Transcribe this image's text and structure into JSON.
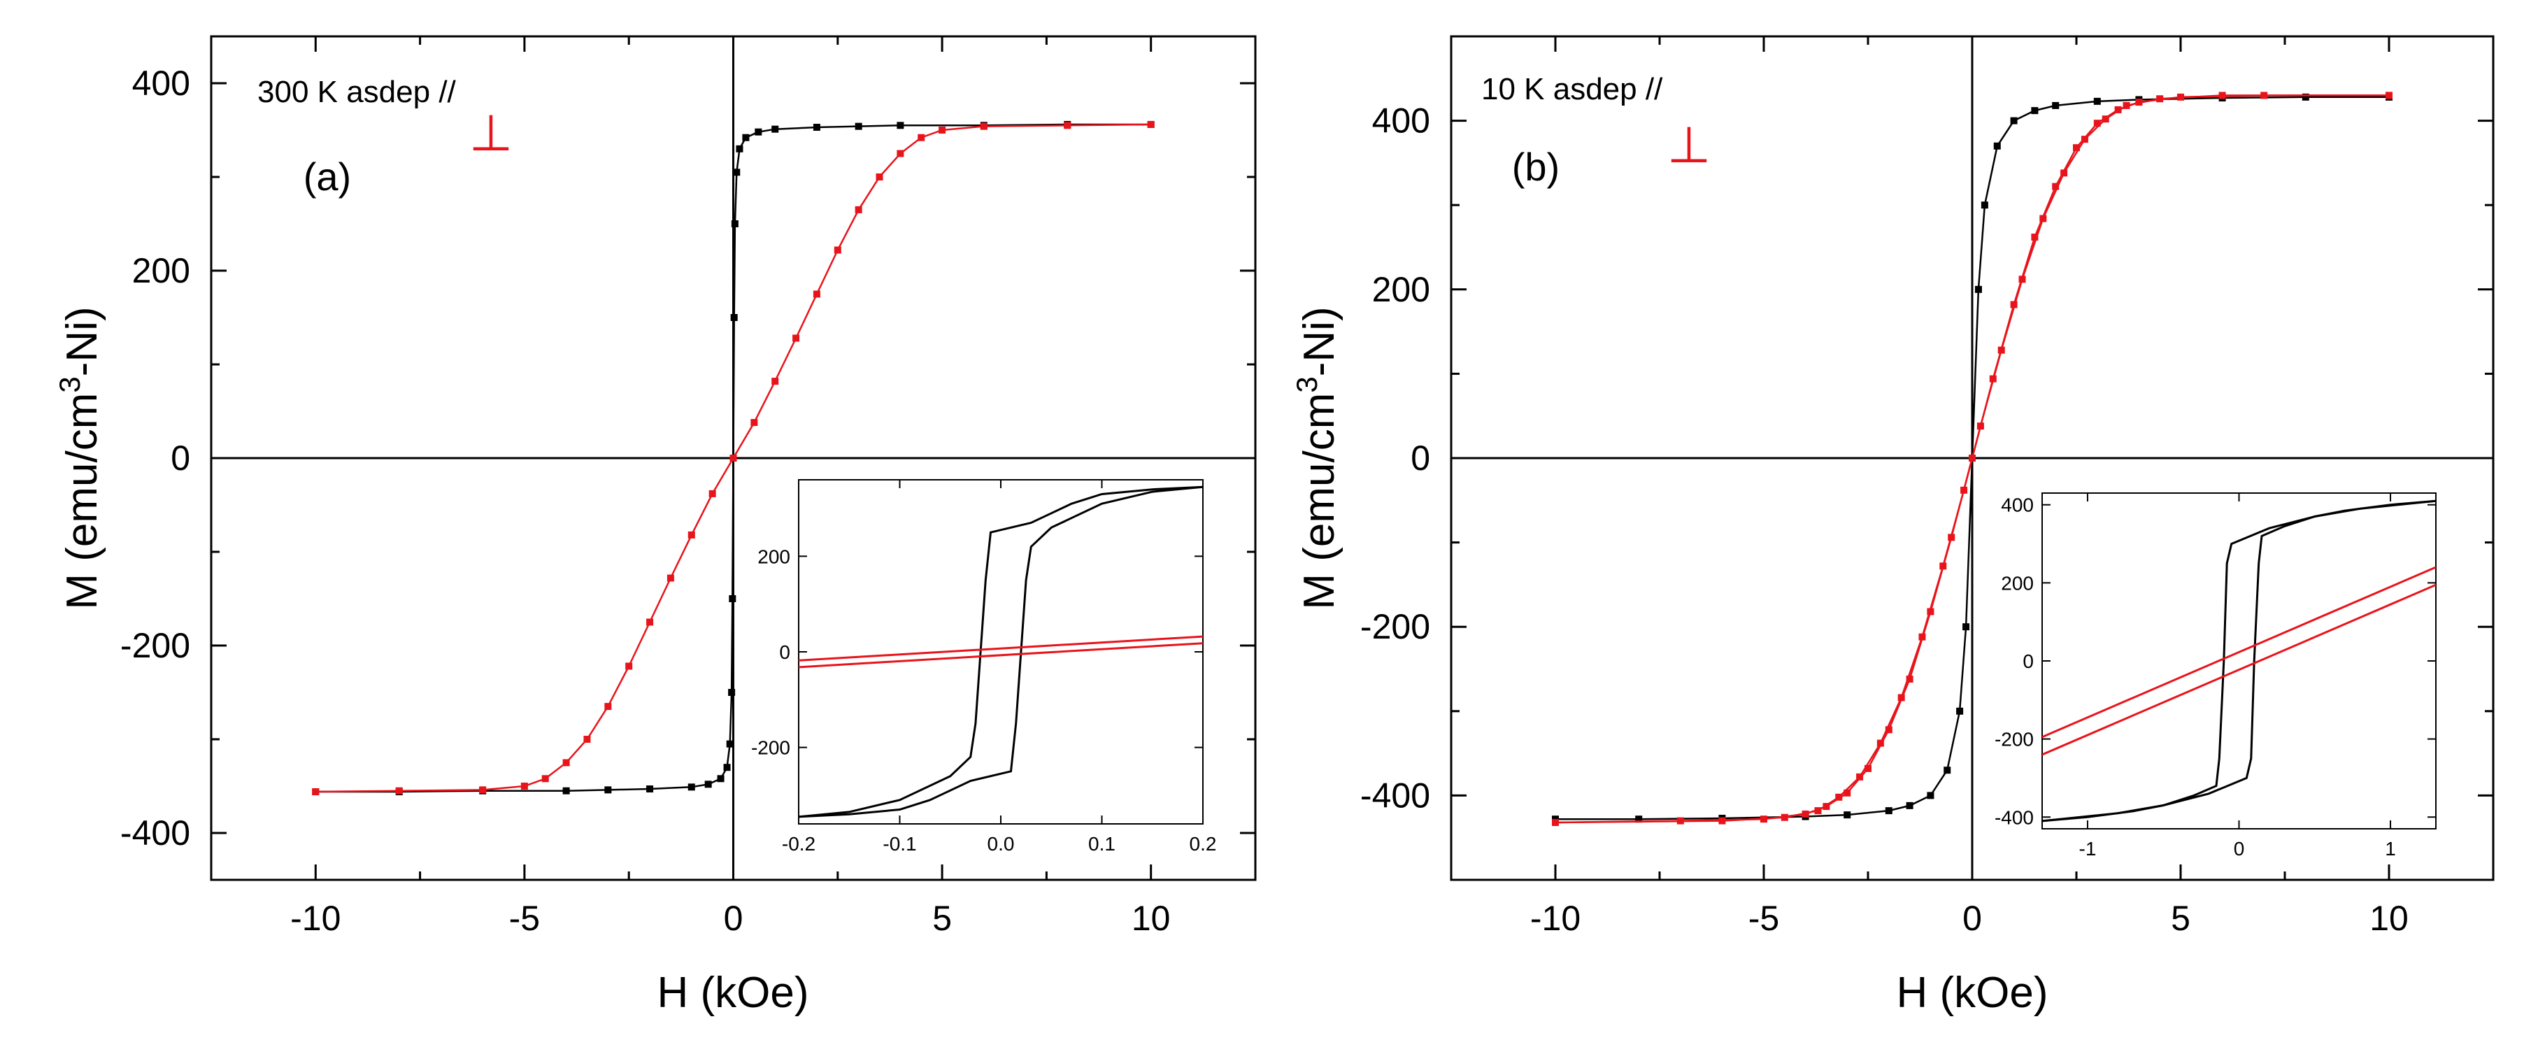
{
  "colors": {
    "parallel": "#000000",
    "perpendicular": "#e8141b"
  },
  "chart_data": [
    {
      "type": "line",
      "panel_label": "(a)",
      "annotation": "300 K asdep //",
      "perp_symbol": "⊥",
      "xlabel": "H (kOe)",
      "ylabel_parts": [
        "M (emu/cm",
        "3",
        "-Ni)"
      ],
      "xlim": [
        -12.5,
        12.5
      ],
      "ylim": [
        -450,
        450
      ],
      "xticks": [
        -10,
        -5,
        0,
        5,
        10
      ],
      "yticks": [
        -400,
        -200,
        0,
        200,
        400
      ],
      "grid": false,
      "series": [
        {
          "marker": "square",
          "color": "#000000",
          "points": [
            [
              -10,
              -356
            ],
            [
              -8,
              -356
            ],
            [
              -6,
              -355
            ],
            [
              -4,
              -355
            ],
            [
              -3,
              -354
            ],
            [
              -2,
              -353
            ],
            [
              -1,
              -351
            ],
            [
              -0.6,
              -348
            ],
            [
              -0.3,
              -342
            ],
            [
              -0.15,
              -330
            ],
            [
              -0.08,
              -305
            ],
            [
              -0.04,
              -250
            ],
            [
              -0.02,
              -150
            ],
            [
              0,
              0
            ],
            [
              0.02,
              150
            ],
            [
              0.04,
              250
            ],
            [
              0.08,
              305
            ],
            [
              0.15,
              330
            ],
            [
              0.3,
              342
            ],
            [
              0.6,
              348
            ],
            [
              1,
              351
            ],
            [
              2,
              353
            ],
            [
              3,
              354
            ],
            [
              4,
              355
            ],
            [
              6,
              355
            ],
            [
              8,
              356
            ],
            [
              10,
              356
            ]
          ]
        },
        {
          "marker": "square",
          "color": "#e8141b",
          "points": [
            [
              -10,
              -356
            ],
            [
              -8,
              -355
            ],
            [
              -6,
              -354
            ],
            [
              -5,
              -350
            ],
            [
              -4.5,
              -342
            ],
            [
              -4,
              -325
            ],
            [
              -3.5,
              -300
            ],
            [
              -3,
              -265
            ],
            [
              -2.5,
              -222
            ],
            [
              -2,
              -175
            ],
            [
              -1.5,
              -128
            ],
            [
              -1,
              -82
            ],
            [
              -0.5,
              -38
            ],
            [
              0,
              0
            ],
            [
              0.5,
              38
            ],
            [
              1,
              82
            ],
            [
              1.5,
              128
            ],
            [
              2,
              175
            ],
            [
              2.5,
              222
            ],
            [
              3,
              265
            ],
            [
              3.5,
              300
            ],
            [
              4,
              325
            ],
            [
              4.5,
              342
            ],
            [
              5,
              350
            ],
            [
              6,
              354
            ],
            [
              8,
              355
            ],
            [
              10,
              356
            ]
          ]
        }
      ],
      "inset": {
        "xlim": [
          -0.2,
          0.2
        ],
        "ylim": [
          -360,
          360
        ],
        "xticks": [
          -0.2,
          -0.1,
          0,
          0.1,
          0.2
        ],
        "xtick_labels": [
          "-0.2",
          "-0.1",
          "0.0",
          "0.1",
          "0.2"
        ],
        "yticks": [
          -200,
          0,
          200
        ],
        "series": [
          {
            "color": "#000000",
            "points": [
              [
                0.2,
                345
              ],
              [
                0.15,
                340
              ],
              [
                0.1,
                330
              ],
              [
                0.07,
                310
              ],
              [
                0.05,
                290
              ],
              [
                0.03,
                270
              ],
              [
                -0.01,
                250
              ],
              [
                -0.015,
                150
              ],
              [
                -0.02,
                0
              ],
              [
                -0.025,
                -150
              ],
              [
                -0.03,
                -220
              ],
              [
                -0.05,
                -260
              ],
              [
                -0.1,
                -310
              ],
              [
                -0.15,
                -335
              ],
              [
                -0.2,
                -345
              ]
            ]
          },
          {
            "color": "#000000",
            "points": [
              [
                -0.2,
                -345
              ],
              [
                -0.15,
                -340
              ],
              [
                -0.1,
                -330
              ],
              [
                -0.07,
                -310
              ],
              [
                -0.05,
                -290
              ],
              [
                -0.03,
                -270
              ],
              [
                0.01,
                -250
              ],
              [
                0.015,
                -150
              ],
              [
                0.02,
                0
              ],
              [
                0.025,
                150
              ],
              [
                0.03,
                220
              ],
              [
                0.05,
                260
              ],
              [
                0.1,
                310
              ],
              [
                0.15,
                335
              ],
              [
                0.2,
                345
              ]
            ]
          },
          {
            "color": "#e8141b",
            "points": [
              [
                -0.2,
                -18
              ],
              [
                0.2,
                32
              ]
            ]
          },
          {
            "color": "#e8141b",
            "points": [
              [
                -0.2,
                -32
              ],
              [
                0.2,
                18
              ]
            ]
          }
        ]
      }
    },
    {
      "type": "line",
      "panel_label": "(b)",
      "annotation": "10 K asdep //",
      "perp_symbol": "⊥",
      "xlabel": "H (kOe)",
      "ylabel_parts": [
        "M (emu/cm",
        "3",
        "-Ni)"
      ],
      "xlim": [
        -12.5,
        12.5
      ],
      "ylim": [
        -500,
        500
      ],
      "xticks": [
        -10,
        -5,
        0,
        5,
        10
      ],
      "yticks": [
        -400,
        -200,
        0,
        200,
        400
      ],
      "grid": false,
      "series": [
        {
          "marker": "square",
          "color": "#000000",
          "points": [
            [
              -10,
              -428
            ],
            [
              -8,
              -428
            ],
            [
              -6,
              -427
            ],
            [
              -4,
              -425
            ],
            [
              -3,
              -423
            ],
            [
              -2,
              -418
            ],
            [
              -1.5,
              -412
            ],
            [
              -1,
              -400
            ],
            [
              -0.6,
              -370
            ],
            [
              -0.3,
              -300
            ],
            [
              -0.15,
              -200
            ],
            [
              0,
              0
            ],
            [
              0.15,
              200
            ],
            [
              0.3,
              300
            ],
            [
              0.6,
              370
            ],
            [
              1,
              400
            ],
            [
              1.5,
              412
            ],
            [
              2,
              418
            ],
            [
              3,
              423
            ],
            [
              4,
              425
            ],
            [
              6,
              427
            ],
            [
              8,
              428
            ],
            [
              10,
              428
            ]
          ]
        },
        {
          "marker": "square",
          "color": "#e8141b",
          "points": [
            [
              10,
              430
            ],
            [
              7,
              430
            ],
            [
              5,
              428
            ],
            [
              4,
              422
            ],
            [
              3.5,
              413
            ],
            [
              3,
              397
            ],
            [
              2.5,
              368
            ],
            [
              2,
              322
            ],
            [
              1.5,
              262
            ],
            [
              1,
              182
            ],
            [
              0.5,
              94
            ],
            [
              0,
              0
            ],
            [
              -0.2,
              -38
            ],
            [
              -0.7,
              -128
            ],
            [
              -1.2,
              -212
            ],
            [
              -1.7,
              -284
            ],
            [
              -2.2,
              -338
            ],
            [
              -2.7,
              -378
            ],
            [
              -3.2,
              -402
            ],
            [
              -3.7,
              -418
            ],
            [
              -4.5,
              -426
            ],
            [
              -6,
              -430
            ],
            [
              -10,
              -432
            ]
          ]
        },
        {
          "marker": "square",
          "color": "#e8141b",
          "points": [
            [
              -10,
              -432
            ],
            [
              -7,
              -430
            ],
            [
              -5,
              -428
            ],
            [
              -4,
              -422
            ],
            [
              -3.5,
              -413
            ],
            [
              -3,
              -397
            ],
            [
              -2.5,
              -368
            ],
            [
              -2,
              -322
            ],
            [
              -1.5,
              -262
            ],
            [
              -1,
              -182
            ],
            [
              -0.5,
              -94
            ],
            [
              0,
              0
            ],
            [
              0.2,
              38
            ],
            [
              0.7,
              128
            ],
            [
              1.2,
              212
            ],
            [
              1.7,
              284
            ],
            [
              2.2,
              338
            ],
            [
              2.7,
              378
            ],
            [
              3.2,
              402
            ],
            [
              3.7,
              418
            ],
            [
              4.5,
              426
            ],
            [
              6,
              430
            ],
            [
              10,
              430
            ]
          ]
        }
      ],
      "inset": {
        "xlim": [
          -1.3,
          1.3
        ],
        "ylim": [
          -430,
          430
        ],
        "xticks": [
          -1,
          0,
          1
        ],
        "xtick_labels": [
          "-1",
          "0",
          "1"
        ],
        "yticks": [
          -400,
          -200,
          0,
          200,
          400
        ],
        "series": [
          {
            "color": "#000000",
            "points": [
              [
                1.3,
                410
              ],
              [
                1,
                400
              ],
              [
                0.7,
                385
              ],
              [
                0.5,
                370
              ],
              [
                0.3,
                345
              ],
              [
                0.15,
                320
              ],
              [
                0.13,
                250
              ],
              [
                0.1,
                0
              ],
              [
                0.08,
                -250
              ],
              [
                0.05,
                -300
              ],
              [
                -0.2,
                -340
              ],
              [
                -0.5,
                -370
              ],
              [
                -0.8,
                -390
              ],
              [
                -1.3,
                -410
              ]
            ]
          },
          {
            "color": "#000000",
            "points": [
              [
                -1.3,
                -410
              ],
              [
                -1,
                -400
              ],
              [
                -0.7,
                -385
              ],
              [
                -0.5,
                -370
              ],
              [
                -0.3,
                -345
              ],
              [
                -0.15,
                -320
              ],
              [
                -0.13,
                -250
              ],
              [
                -0.1,
                0
              ],
              [
                -0.08,
                250
              ],
              [
                -0.05,
                300
              ],
              [
                0.2,
                340
              ],
              [
                0.5,
                370
              ],
              [
                0.8,
                390
              ],
              [
                1.3,
                410
              ]
            ]
          },
          {
            "color": "#e8141b",
            "points": [
              [
                -1.3,
                -195
              ],
              [
                1.3,
                240
              ]
            ]
          },
          {
            "color": "#e8141b",
            "points": [
              [
                -1.3,
                -240
              ],
              [
                1.3,
                195
              ]
            ]
          }
        ]
      }
    }
  ]
}
